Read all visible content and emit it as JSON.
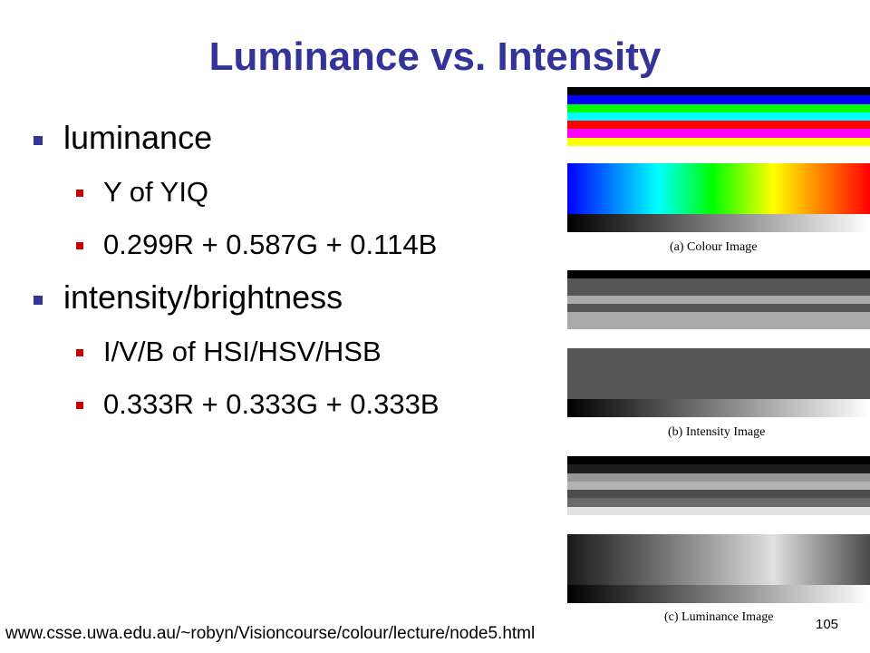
{
  "slide": {
    "title": "Luminance vs. Intensity",
    "bullets": {
      "luminance": "luminance",
      "yiq": "Y of YIQ",
      "lum_formula": "0.299R + 0.587G + 0.114B",
      "intensity": "intensity/brightness",
      "hsi": "I/V/B of HSI/HSV/HSB",
      "int_formula": "0.333R + 0.333G + 0.333B"
    },
    "footer_url": "www.csse.uwa.edu.au/~robyn/Visioncourse/colour/lecture/node5.html",
    "page_number": "105"
  },
  "figure": {
    "captions": {
      "a": "(a) Colour Image",
      "b": "(b) Intensity Image",
      "c": "(c) Luminance Image"
    },
    "colour_stripes": [
      "#000000",
      "#0000ff",
      "#00ff00",
      "#00ffff",
      "#ff0000",
      "#ff00ff",
      "#ffff00",
      "#ffffff"
    ],
    "intensity_stripes": [
      "#000000",
      "#555555",
      "#555555",
      "#aaaaaa",
      "#555555",
      "#aaaaaa",
      "#aaaaaa",
      "#ffffff"
    ],
    "luminance_stripes": [
      "#000000",
      "#1d1d1d",
      "#969696",
      "#b3b3b3",
      "#4c4c4c",
      "#696969",
      "#e2e2e2",
      "#ffffff"
    ]
  }
}
